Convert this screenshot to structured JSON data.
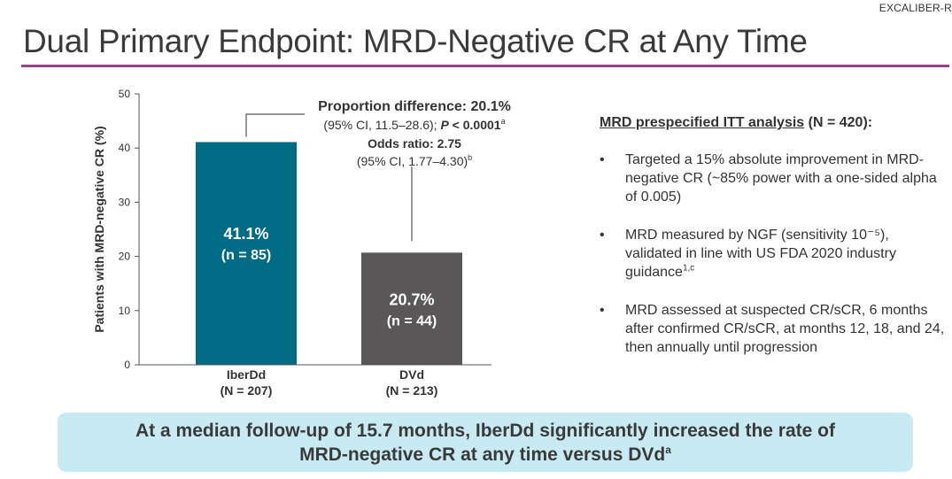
{
  "header": {
    "study_tag": "EXCALIBER-R",
    "title": "Dual Primary Endpoint: MRD-Negative CR at Any Time"
  },
  "chart_data": {
    "type": "bar",
    "ylabel": "Patients with MRD-negative CR (%)",
    "ylim": [
      0,
      50
    ],
    "yticks": [
      0,
      10,
      20,
      30,
      40,
      50
    ],
    "categories": [
      "IberDd",
      "DVd"
    ],
    "category_sublabels": [
      "(N = 207)",
      "(N = 213)"
    ],
    "values": [
      41.1,
      20.7
    ],
    "value_labels": [
      "41.1%",
      "20.7%"
    ],
    "n_labels": [
      "(n = 85)",
      "(n = 44)"
    ],
    "colors": [
      "#006b84",
      "#595757"
    ],
    "annotation": {
      "line1": "Proportion difference: 20.1%",
      "line2_pre": "(95% CI, 11.5–28.6); ",
      "line2_p": "P",
      "line2_post": " < 0.0001",
      "line2_sup": "a",
      "line3": "Odds ratio: 2.75",
      "line4": "(95% CI, 1.77–4.30)",
      "line4_sup": "b"
    }
  },
  "right_panel": {
    "heading_underlined": "MRD prespecified ITT analysis",
    "heading_rest": " (N = 420):",
    "bullet_char": "•",
    "bullets": [
      {
        "text": "Targeted a 15% absolute improvement in MRD-negative CR (~85% power with a one-sided alpha of 0.005)",
        "sup": ""
      },
      {
        "text": "MRD measured by NGF (sensitivity 10⁻⁵), validated in line with US FDA 2020 industry guidance",
        "sup": "1,c"
      },
      {
        "text": "MRD assessed at suspected CR/sCR, 6 months after confirmed CR/sCR, at months 12, 18, and 24, then annually until progression",
        "sup": ""
      }
    ]
  },
  "banner": {
    "line1": "At a median follow-up of 15.7 months, IberDd significantly increased the rate of",
    "line2": "MRD-negative CR at any time versus DVd",
    "line2_sup": "a"
  }
}
